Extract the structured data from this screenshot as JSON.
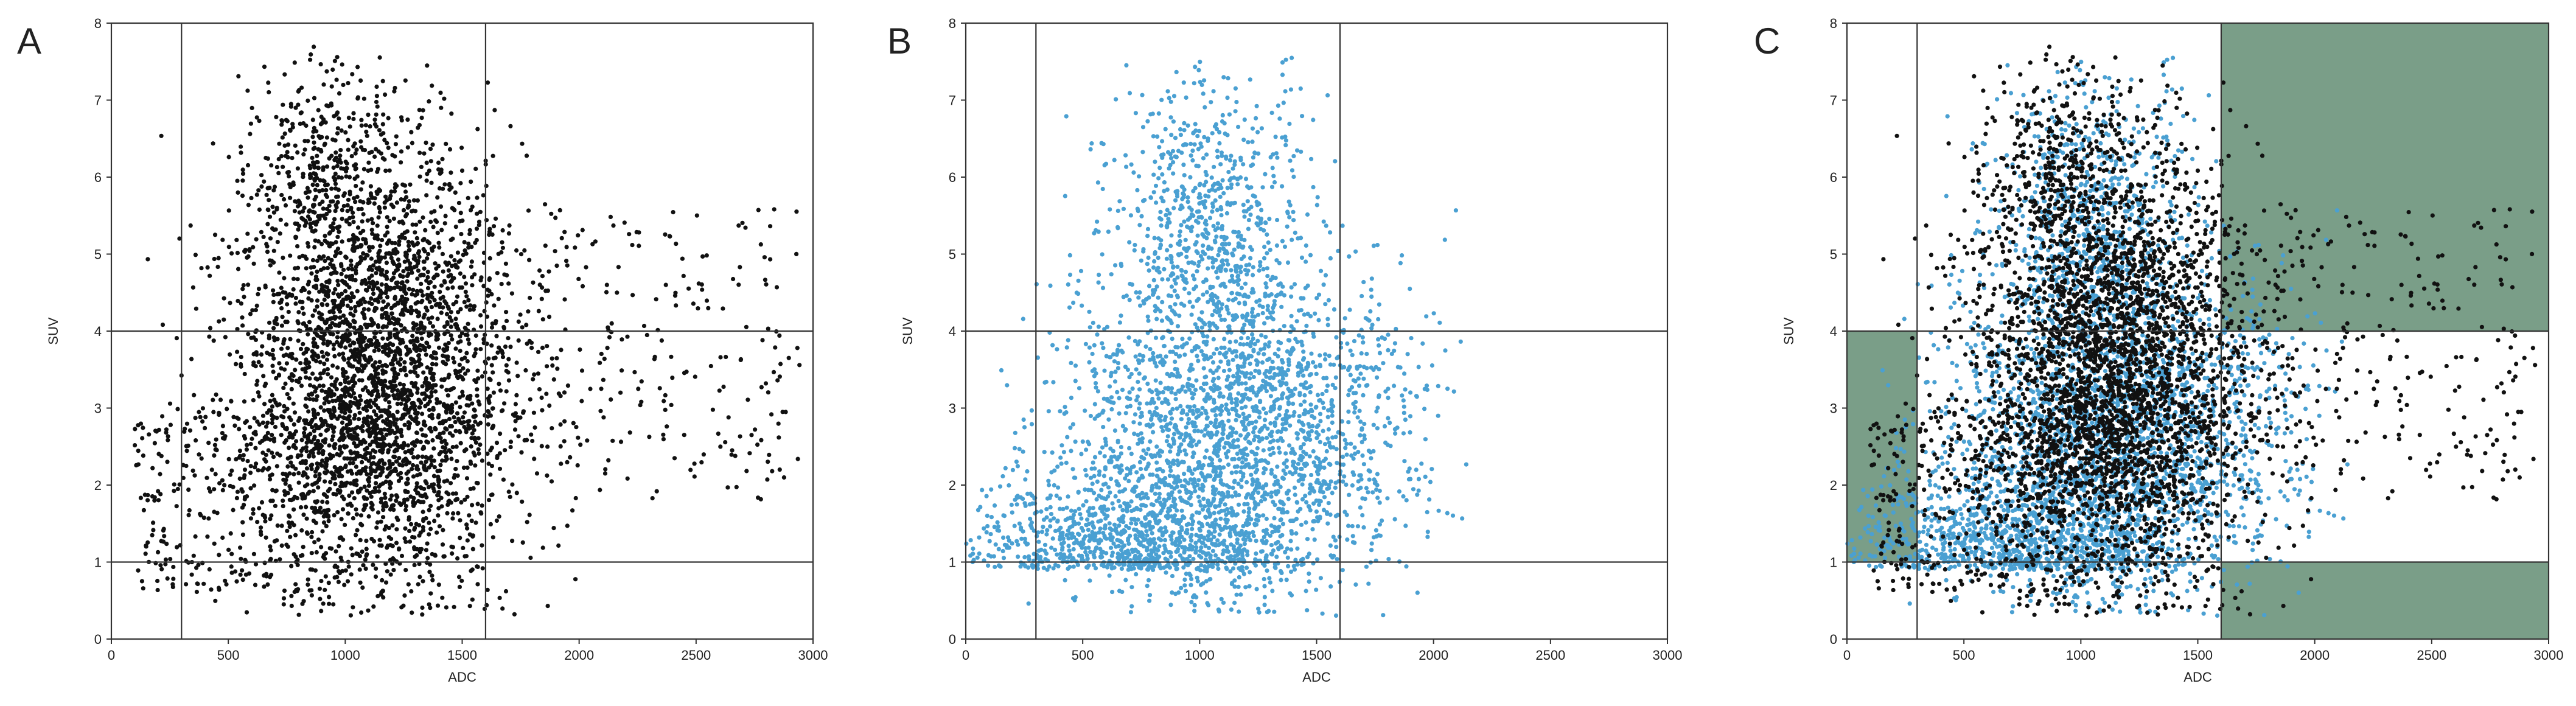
{
  "figure": {
    "panels": [
      {
        "letter": "A"
      },
      {
        "letter": "B"
      },
      {
        "letter": "C"
      }
    ]
  },
  "colors": {
    "black_points": "#111111",
    "blue_points": "#4aa0d2",
    "highlight_region": "#7a9e88",
    "frame": "#333333"
  },
  "chart_data": [
    {
      "type": "scatter",
      "panel": "A",
      "xlabel": "ADC",
      "ylabel": "SUV",
      "xlim": [
        0,
        3000
      ],
      "ylim": [
        0,
        8
      ],
      "xticks": [
        0,
        500,
        1000,
        1500,
        2000,
        2500,
        3000
      ],
      "yticks": [
        0,
        1,
        2,
        3,
        4,
        5,
        6,
        7,
        8
      ],
      "grid": false,
      "thresholds": {
        "x": [
          300,
          1600
        ],
        "y": [
          1,
          4
        ]
      },
      "series": [
        {
          "color": "#111111",
          "count": 4200,
          "distribution": {
            "x_center": 1150,
            "y_center": 3.4,
            "x_spread": 300,
            "y_spread": 1.4,
            "x_range": [
              0,
              3000
            ],
            "y_range": [
              0.3,
              7.7
            ]
          }
        }
      ],
      "sample_points": [
        [
          50,
          1.1
        ],
        [
          100,
          1.9
        ],
        [
          300,
          2.4
        ],
        [
          500,
          3.9
        ],
        [
          600,
          6.2
        ],
        [
          800,
          7.4
        ],
        [
          1000,
          3.2
        ],
        [
          1100,
          7.7
        ],
        [
          1200,
          3.5
        ],
        [
          1300,
          2.1
        ],
        [
          1500,
          5.4
        ],
        [
          1600,
          3.4
        ],
        [
          1800,
          2.2
        ],
        [
          2000,
          6.2
        ],
        [
          2250,
          6.1
        ],
        [
          2500,
          5.0
        ],
        [
          2700,
          4.0
        ],
        [
          2950,
          2.7
        ]
      ]
    },
    {
      "type": "scatter",
      "panel": "B",
      "xlabel": "ADC",
      "ylabel": "SUV",
      "xlim": [
        0,
        3000
      ],
      "ylim": [
        0,
        8
      ],
      "xticks": [
        0,
        500,
        1000,
        1500,
        2000,
        2500,
        3000
      ],
      "yticks": [
        0,
        1,
        2,
        3,
        4,
        5,
        6,
        7,
        8
      ],
      "grid": false,
      "thresholds": {
        "x": [
          300,
          1600
        ],
        "y": [
          1,
          4
        ]
      },
      "series": [
        {
          "color": "#4aa0d2",
          "count": 3800,
          "distribution": {
            "x_center": 1050,
            "y_center": 2.6,
            "x_spread": 330,
            "y_spread": 1.5,
            "x_range": [
              0,
              2150
            ],
            "y_range": [
              0.3,
              7.6
            ]
          }
        }
      ],
      "sample_points": [
        [
          20,
          0.6
        ],
        [
          200,
          0.8
        ],
        [
          500,
          1.0
        ],
        [
          800,
          1.5
        ],
        [
          900,
          7.5
        ],
        [
          1000,
          4.5
        ],
        [
          1100,
          2.0
        ],
        [
          1200,
          7.1
        ],
        [
          1400,
          3.0
        ],
        [
          1600,
          6.5
        ],
        [
          1800,
          4.5
        ],
        [
          2000,
          3.0
        ],
        [
          2100,
          2.5
        ]
      ]
    },
    {
      "type": "scatter",
      "panel": "C",
      "xlabel": "ADC",
      "ylabel": "SUV",
      "xlim": [
        0,
        3000
      ],
      "ylim": [
        0,
        8
      ],
      "xticks": [
        0,
        500,
        1000,
        1500,
        2000,
        2500,
        3000
      ],
      "yticks": [
        0,
        1,
        2,
        3,
        4,
        5,
        6,
        7,
        8
      ],
      "grid": false,
      "thresholds": {
        "x": [
          300,
          1600
        ],
        "y": [
          1,
          4
        ]
      },
      "highlighted_regions": [
        {
          "x": [
            0,
            300
          ],
          "y": [
            1,
            4
          ]
        },
        {
          "x": [
            1600,
            3000
          ],
          "y": [
            4,
            8
          ]
        },
        {
          "x": [
            1600,
            3000
          ],
          "y": [
            0,
            1
          ]
        }
      ],
      "series": [
        {
          "color": "#4aa0d2",
          "count": 3800,
          "same_as_panel": "B"
        },
        {
          "color": "#111111",
          "count": 4200,
          "same_as_panel": "A"
        }
      ]
    }
  ]
}
